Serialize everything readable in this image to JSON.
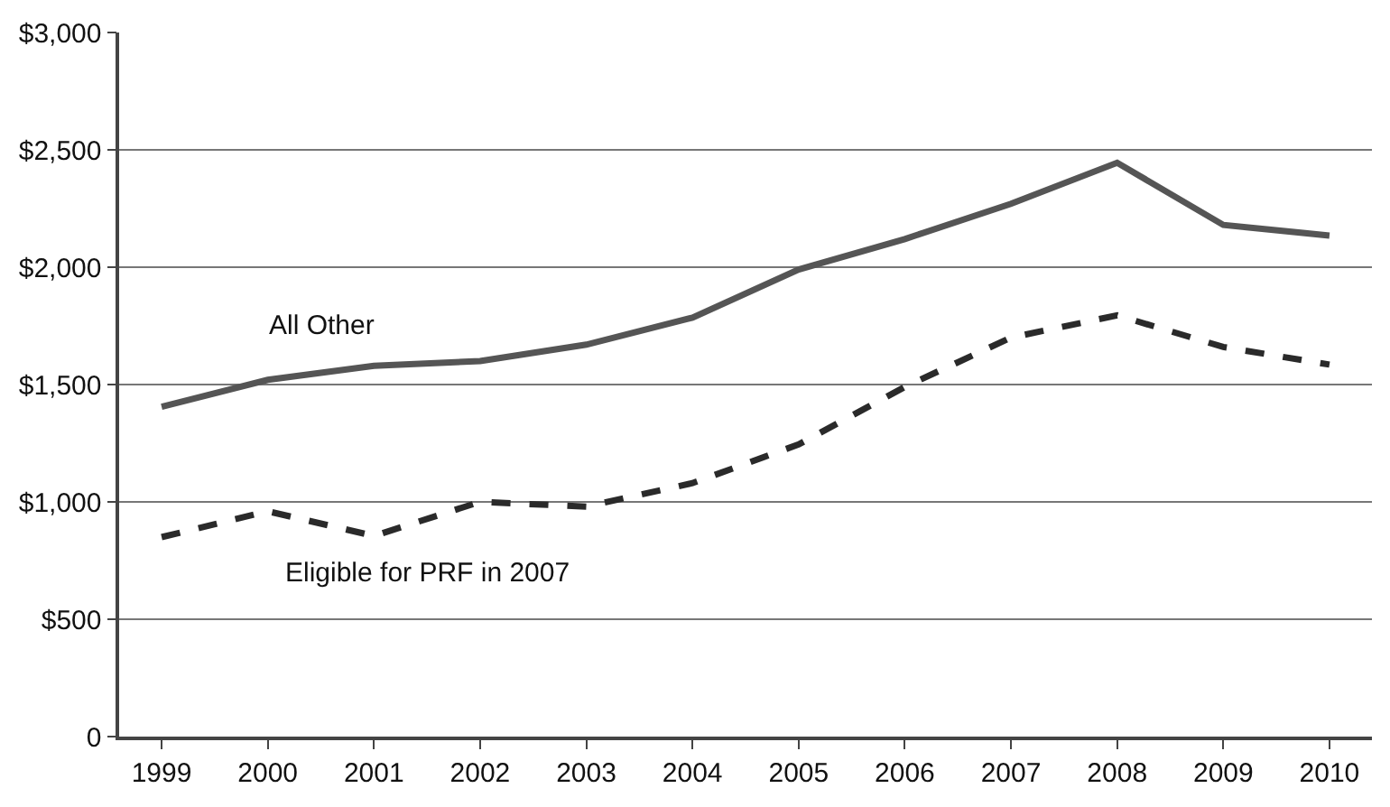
{
  "chart_data": {
    "type": "line",
    "x": [
      1999,
      2000,
      2001,
      2002,
      2003,
      2004,
      2005,
      2006,
      2007,
      2008,
      2009,
      2010
    ],
    "series": [
      {
        "name": "All Other",
        "color": "#555555",
        "line_style": "solid",
        "values": [
          1405,
          1520,
          1580,
          1600,
          1670,
          1785,
          1990,
          2120,
          2270,
          2445,
          2180,
          2135
        ]
      },
      {
        "name": "Eligible for PRF in 2007",
        "color": "#2a2a2a",
        "line_style": "dashed",
        "values": [
          850,
          960,
          855,
          1000,
          980,
          1080,
          1245,
          1490,
          1700,
          1795,
          1660,
          1585
        ]
      }
    ],
    "xlim": [
      1998.6,
      2010.4
    ],
    "xticks": [
      1999,
      2000,
      2001,
      2002,
      2003,
      2004,
      2005,
      2006,
      2007,
      2008,
      2009,
      2010
    ],
    "ylim": [
      0,
      3000
    ],
    "yticks": [
      {
        "value": 0,
        "label": "0"
      },
      {
        "value": 500,
        "label": "$500"
      },
      {
        "value": 1000,
        "label": "$1,000"
      },
      {
        "value": 1500,
        "label": "$1,500"
      },
      {
        "value": 2000,
        "label": "$2,000"
      },
      {
        "value": 2500,
        "label": "$2,500"
      },
      {
        "value": 3000,
        "label": "$3,000"
      }
    ],
    "grid": "y",
    "legend": false,
    "marker": "none"
  }
}
